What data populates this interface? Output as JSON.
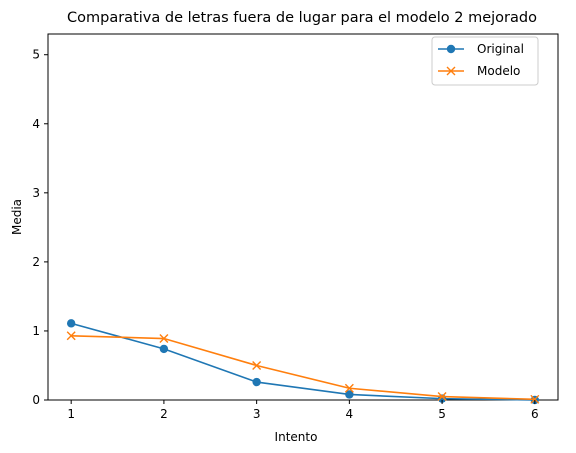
{
  "chart_data": {
    "type": "line",
    "title": "Comparativa de letras fuera de lugar para el modelo 2 mejorado",
    "xlabel": "Intento",
    "ylabel": "Media",
    "x": [
      1,
      2,
      3,
      4,
      5,
      6
    ],
    "xticks": [
      "1",
      "2",
      "3",
      "4",
      "5",
      "6"
    ],
    "yticks": [
      "0",
      "1",
      "2",
      "3",
      "4",
      "5"
    ],
    "xlim": [
      0.75,
      6.25
    ],
    "ylim": [
      0,
      5.3
    ],
    "grid": false,
    "legend_position": "top-right",
    "series": [
      {
        "name": "Original",
        "marker": "circle",
        "color": "#1f77b4",
        "values": [
          1.11,
          0.74,
          0.26,
          0.08,
          0.02,
          0.0
        ]
      },
      {
        "name": "Modelo",
        "marker": "x",
        "color": "#ff7f0e",
        "values": [
          0.93,
          0.89,
          0.5,
          0.17,
          0.05,
          0.01
        ]
      }
    ]
  }
}
